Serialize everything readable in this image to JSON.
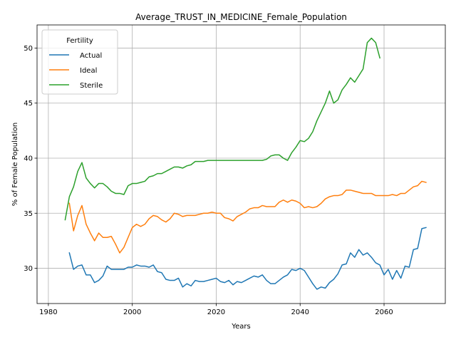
{
  "chart_data": {
    "type": "line",
    "title": "Average_TRUST_IN_MEDICINE_Female_Population",
    "xlabel": "Years",
    "ylabel": "% of Female Population",
    "xlim": [
      1977.3,
      2074.6
    ],
    "ylim": [
      26.8,
      52.1
    ],
    "x_ticks": [
      1980,
      2000,
      2020,
      2040,
      2060
    ],
    "y_ticks": [
      30,
      35,
      40,
      45,
      50
    ],
    "grid": true,
    "legend": {
      "title": "Fertility",
      "position": "top-left"
    },
    "series": [
      {
        "name": "Actual",
        "color": "#1f77b4",
        "x": [
          1985,
          1986,
          1987,
          1988,
          1989,
          1990,
          1991,
          1992,
          1993,
          1994,
          1995,
          1996,
          1997,
          1998,
          1999,
          2000,
          2001,
          2002,
          2003,
          2004,
          2005,
          2006,
          2007,
          2008,
          2009,
          2010,
          2011,
          2012,
          2013,
          2014,
          2015,
          2016,
          2017,
          2018,
          2019,
          2020,
          2021,
          2022,
          2023,
          2024,
          2025,
          2026,
          2027,
          2028,
          2029,
          2030,
          2031,
          2032,
          2033,
          2034,
          2035,
          2036,
          2037,
          2038,
          2039,
          2040,
          2041,
          2042,
          2043,
          2044,
          2045,
          2046,
          2047,
          2048,
          2049,
          2050,
          2051,
          2052,
          2053,
          2054,
          2055,
          2056,
          2057,
          2058,
          2059,
          2060,
          2061,
          2062,
          2063,
          2064,
          2065,
          2066,
          2067,
          2068,
          2069,
          2070
        ],
        "y": [
          31.4,
          29.9,
          30.2,
          30.3,
          29.4,
          29.4,
          28.7,
          28.9,
          29.3,
          30.2,
          29.9,
          29.9,
          29.9,
          29.9,
          30.1,
          30.1,
          30.3,
          30.2,
          30.2,
          30.1,
          30.3,
          29.7,
          29.6,
          29.0,
          28.9,
          28.9,
          29.1,
          28.3,
          28.6,
          28.4,
          28.9,
          28.8,
          28.8,
          28.9,
          29.0,
          29.1,
          28.8,
          28.7,
          28.9,
          28.5,
          28.8,
          28.7,
          28.9,
          29.1,
          29.3,
          29.2,
          29.4,
          28.9,
          28.6,
          28.6,
          28.9,
          29.2,
          29.4,
          29.9,
          29.8,
          30.0,
          29.8,
          29.2,
          28.6,
          28.1,
          28.3,
          28.2,
          28.7,
          29.0,
          29.5,
          30.3,
          30.4,
          31.4,
          31.0,
          31.7,
          31.2,
          31.4,
          31.0,
          30.5,
          30.3,
          29.4,
          29.9,
          29.0,
          29.8,
          29.1,
          30.2,
          30.1,
          31.7,
          31.8,
          33.6,
          33.7
        ]
      },
      {
        "name": "Ideal",
        "color": "#ff7f0e",
        "x": [
          1985,
          1986,
          1987,
          1988,
          1989,
          1990,
          1991,
          1992,
          1993,
          1994,
          1995,
          1996,
          1997,
          1998,
          1999,
          2000,
          2001,
          2002,
          2003,
          2004,
          2005,
          2006,
          2007,
          2008,
          2009,
          2010,
          2011,
          2012,
          2013,
          2014,
          2015,
          2016,
          2017,
          2018,
          2019,
          2020,
          2021,
          2022,
          2023,
          2024,
          2025,
          2026,
          2027,
          2028,
          2029,
          2030,
          2031,
          2032,
          2033,
          2034,
          2035,
          2036,
          2037,
          2038,
          2039,
          2040,
          2041,
          2042,
          2043,
          2044,
          2045,
          2046,
          2047,
          2048,
          2049,
          2050,
          2051,
          2052,
          2053,
          2054,
          2055,
          2056,
          2057,
          2058,
          2059,
          2060,
          2061,
          2062,
          2063,
          2064,
          2065,
          2066,
          2067,
          2068,
          2069,
          2070
        ],
        "y": [
          35.9,
          33.4,
          34.8,
          35.7,
          34.0,
          33.2,
          32.5,
          33.2,
          32.8,
          32.8,
          32.9,
          32.2,
          31.4,
          31.9,
          32.8,
          33.7,
          34.0,
          33.8,
          34.0,
          34.5,
          34.8,
          34.7,
          34.4,
          34.2,
          34.5,
          35.0,
          34.9,
          34.7,
          34.8,
          34.8,
          34.8,
          34.9,
          35.0,
          35.0,
          35.1,
          35.0,
          35.0,
          34.6,
          34.5,
          34.3,
          34.7,
          34.9,
          35.1,
          35.4,
          35.5,
          35.5,
          35.7,
          35.6,
          35.6,
          35.6,
          36.0,
          36.2,
          36.0,
          36.2,
          36.1,
          35.9,
          35.5,
          35.6,
          35.5,
          35.6,
          35.9,
          36.3,
          36.5,
          36.6,
          36.6,
          36.7,
          37.1,
          37.1,
          37.0,
          36.9,
          36.8,
          36.8,
          36.8,
          36.6,
          36.6,
          36.6,
          36.6,
          36.7,
          36.6,
          36.8,
          36.8,
          37.1,
          37.4,
          37.5,
          37.9,
          37.8
        ]
      },
      {
        "name": "Sterile",
        "color": "#2ca02c",
        "x": [
          1984,
          1985,
          1986,
          1987,
          1988,
          1989,
          1990,
          1991,
          1992,
          1993,
          1994,
          1995,
          1996,
          1997,
          1998,
          1999,
          2000,
          2001,
          2002,
          2003,
          2004,
          2005,
          2006,
          2007,
          2008,
          2009,
          2010,
          2011,
          2012,
          2013,
          2014,
          2015,
          2016,
          2017,
          2018,
          2019,
          2020,
          2021,
          2022,
          2023,
          2024,
          2025,
          2026,
          2027,
          2028,
          2029,
          2030,
          2031,
          2032,
          2033,
          2034,
          2035,
          2036,
          2037,
          2038,
          2039,
          2040,
          2041,
          2042,
          2043,
          2044,
          2045,
          2046,
          2047,
          2048,
          2049,
          2050,
          2051,
          2052,
          2053,
          2054,
          2055,
          2056,
          2057,
          2058,
          2059
        ],
        "y": [
          34.4,
          36.5,
          37.4,
          38.8,
          39.6,
          38.2,
          37.7,
          37.3,
          37.7,
          37.7,
          37.4,
          37.0,
          36.8,
          36.8,
          36.7,
          37.5,
          37.7,
          37.7,
          37.8,
          37.9,
          38.3,
          38.4,
          38.6,
          38.6,
          38.8,
          39.0,
          39.2,
          39.2,
          39.1,
          39.3,
          39.4,
          39.7,
          39.7,
          39.7,
          39.8,
          39.8,
          39.8,
          39.8,
          39.8,
          39.8,
          39.8,
          39.8,
          39.8,
          39.8,
          39.8,
          39.8,
          39.8,
          39.8,
          39.9,
          40.2,
          40.3,
          40.3,
          40.0,
          39.8,
          40.5,
          41.0,
          41.6,
          41.5,
          41.8,
          42.4,
          43.4,
          44.2,
          45.0,
          46.1,
          45.0,
          45.3,
          46.2,
          46.7,
          47.3,
          46.9,
          47.5,
          48.1,
          50.5,
          50.9,
          50.5,
          49.1
        ]
      }
    ]
  }
}
